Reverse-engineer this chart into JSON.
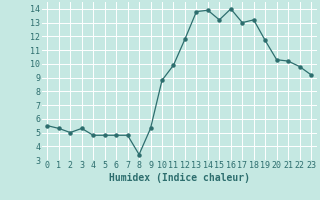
{
  "x": [
    0,
    1,
    2,
    3,
    4,
    5,
    6,
    7,
    8,
    9,
    10,
    11,
    12,
    13,
    14,
    15,
    16,
    17,
    18,
    19,
    20,
    21,
    22,
    23
  ],
  "y": [
    5.5,
    5.3,
    5.0,
    5.3,
    4.8,
    4.8,
    4.8,
    4.8,
    3.4,
    5.3,
    8.8,
    9.9,
    11.8,
    13.8,
    13.9,
    13.2,
    14.0,
    13.0,
    13.2,
    11.7,
    10.3,
    10.2,
    9.8,
    9.2
  ],
  "xlabel": "Humidex (Indice chaleur)",
  "xlim": [
    -0.5,
    23.5
  ],
  "ylim": [
    3,
    14.5
  ],
  "yticks": [
    3,
    4,
    5,
    6,
    7,
    8,
    9,
    10,
    11,
    12,
    13,
    14
  ],
  "xtick_labels": [
    "0",
    "1",
    "2",
    "3",
    "4",
    "5",
    "6",
    "7",
    "8",
    "9",
    "10",
    "11",
    "12",
    "13",
    "14",
    "15",
    "16",
    "17",
    "18",
    "19",
    "20",
    "21",
    "22",
    "23"
  ],
  "line_color": "#2d6e6e",
  "marker_color": "#2d6e6e",
  "bg_color": "#c5e8e2",
  "grid_color": "#ffffff",
  "font_color": "#2d6e6e",
  "xlabel_color": "#2d6e6e",
  "tick_fontsize": 6.0,
  "xlabel_fontsize": 7.0
}
